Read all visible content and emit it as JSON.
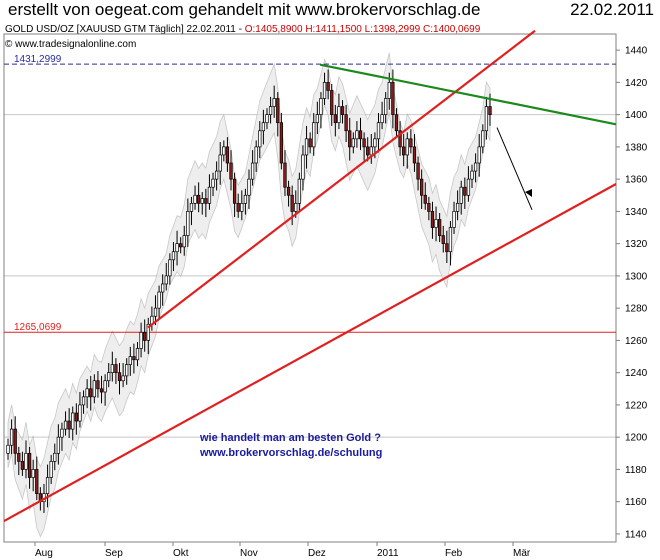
{
  "header": {
    "title": "erstellt von oegeat.com gehandelt mit www.brokervorschlag.de",
    "date": "22.02.2011"
  },
  "info": {
    "symbol": "GOLD USD/OZ [XAUUSD GTM  Täglich] 22.02.2011 - ",
    "values": "O:1405,8900 H:1411,1500 L:1398,2999 C:1400,0699",
    "source": "© www.tradesignalonline.com"
  },
  "colors": {
    "candle_up": "#ffffff",
    "candle_down": "#8b1a1a",
    "trend_red": "#e02020",
    "trend_green": "#1a8a1a",
    "dashed_blue": "#2a2a9a",
    "band_fill": "#e8e8e8",
    "promo_text": "#1a1aa0"
  },
  "chart_data": {
    "type": "candlestick",
    "title": "GOLD USD/OZ [XAUUSD GTM Täglich]",
    "ylim": [
      1135,
      1450
    ],
    "y_ticks": [
      1140,
      1160,
      1180,
      1200,
      1220,
      1240,
      1260,
      1280,
      1300,
      1320,
      1340,
      1360,
      1380,
      1400,
      1420,
      1440
    ],
    "x_ticks": [
      "Aug",
      "Sep",
      "Okt",
      "Nov",
      "Dez",
      "2011",
      "Feb",
      "Mär"
    ],
    "dates": [
      "2010-07-22",
      "2011-03-10"
    ],
    "closes": [
      1195,
      1205,
      1190,
      1185,
      1180,
      1190,
      1175,
      1180,
      1165,
      1160,
      1165,
      1175,
      1185,
      1190,
      1200,
      1205,
      1210,
      1205,
      1215,
      1210,
      1220,
      1225,
      1230,
      1225,
      1235,
      1230,
      1228,
      1235,
      1240,
      1245,
      1240,
      1235,
      1238,
      1245,
      1250,
      1248,
      1255,
      1265,
      1260,
      1270,
      1275,
      1280,
      1290,
      1295,
      1300,
      1310,
      1315,
      1320,
      1318,
      1325,
      1340,
      1345,
      1350,
      1345,
      1348,
      1345,
      1355,
      1360,
      1365,
      1375,
      1380,
      1370,
      1360,
      1345,
      1340,
      1345,
      1350,
      1360,
      1370,
      1380,
      1390,
      1395,
      1400,
      1405,
      1410,
      1395,
      1370,
      1355,
      1350,
      1340,
      1345,
      1360,
      1375,
      1385,
      1380,
      1395,
      1400,
      1410,
      1420,
      1415,
      1400,
      1395,
      1405,
      1400,
      1390,
      1380,
      1385,
      1390,
      1385,
      1380,
      1375,
      1380,
      1385,
      1395,
      1400,
      1410,
      1420,
      1400,
      1390,
      1380,
      1375,
      1385,
      1380,
      1370,
      1360,
      1350,
      1345,
      1340,
      1330,
      1335,
      1325,
      1320,
      1315,
      1330,
      1340,
      1345,
      1355,
      1350,
      1360,
      1365,
      1370,
      1380,
      1390,
      1405,
      1400
    ],
    "levels": [
      {
        "label": "1431,2999",
        "value": 1431.3
      },
      {
        "label": "1265,0699",
        "value": 1265.07
      }
    ],
    "annotations": [
      "wie handelt man am besten Gold ?",
      "www.brokervorschlag.de/schulung"
    ]
  }
}
